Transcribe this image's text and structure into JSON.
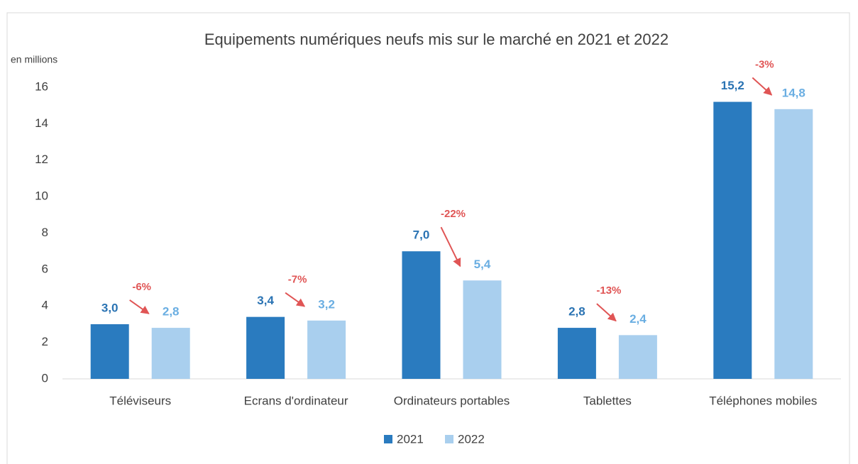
{
  "chart_data": {
    "type": "bar",
    "title": "Equipements numériques neufs mis sur le marché en 2021 et 2022",
    "y_label": "en millions",
    "categories": [
      "Téléviseurs",
      "Ecrans d'ordinateur",
      "Ordinateurs portables",
      "Tablettes",
      "Téléphones mobiles"
    ],
    "series": [
      {
        "name": "2021",
        "color": "#2a7bbf",
        "label_color": "#2a73b3",
        "values": [
          3.0,
          3.4,
          7.0,
          2.8,
          15.2
        ],
        "value_labels": [
          "3,0",
          "3,4",
          "7,0",
          "2,8",
          "15,2"
        ]
      },
      {
        "name": "2022",
        "color": "#a9cfee",
        "label_color": "#6aaee2",
        "values": [
          2.8,
          3.2,
          5.4,
          2.4,
          14.8
        ],
        "value_labels": [
          "2,8",
          "3,2",
          "5,4",
          "2,4",
          "14,8"
        ]
      }
    ],
    "annotations": [
      "-6%",
      "-7%",
      "-22%",
      "-13%",
      "-3%"
    ],
    "annotation_color": "#e05555",
    "ylim": [
      0,
      16
    ],
    "yticks": [
      0,
      2,
      4,
      6,
      8,
      10,
      12,
      14,
      16
    ],
    "grid": false,
    "legend": "bottom"
  }
}
